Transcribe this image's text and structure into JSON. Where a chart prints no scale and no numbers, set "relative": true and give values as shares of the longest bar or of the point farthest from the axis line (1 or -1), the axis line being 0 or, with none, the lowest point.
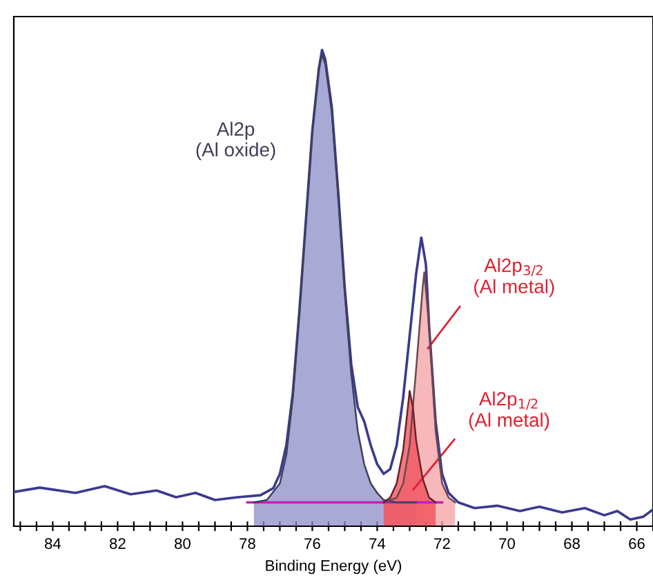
{
  "chart_data": {
    "type": "area",
    "xlabel": "Binding Energy (eV)",
    "relative": true,
    "legend": false,
    "grid": false,
    "xlim": [
      85.2,
      65.5
    ],
    "xticks": [
      {
        "value": 85,
        "label": null
      },
      {
        "value": 84.5,
        "label": null
      },
      84,
      {
        "value": 83.5,
        "label": null
      },
      {
        "value": 83,
        "label": null
      },
      {
        "value": 82.5,
        "label": null
      },
      82,
      {
        "value": 81.5,
        "label": null
      },
      {
        "value": 81,
        "label": null
      },
      {
        "value": 80.5,
        "label": null
      },
      80,
      {
        "value": 79.5,
        "label": null
      },
      {
        "value": 79,
        "label": null
      },
      {
        "value": 78.5,
        "label": null
      },
      78,
      {
        "value": 77.5,
        "label": null
      },
      {
        "value": 77,
        "label": null
      },
      {
        "value": 76.5,
        "label": null
      },
      76,
      {
        "value": 75.5,
        "label": null
      },
      {
        "value": 75,
        "label": null
      },
      {
        "value": 74.5,
        "label": null
      },
      74,
      {
        "value": 73.5,
        "label": null
      },
      {
        "value": 73,
        "label": null
      },
      {
        "value": 72.5,
        "label": null
      },
      72,
      {
        "value": 71.5,
        "label": null
      },
      {
        "value": 71,
        "label": null
      },
      {
        "value": 70.5,
        "label": null
      },
      70,
      {
        "value": 69.5,
        "label": null
      },
      {
        "value": 69,
        "label": null
      },
      {
        "value": 68.5,
        "label": null
      },
      68,
      {
        "value": 67.5,
        "label": null
      },
      {
        "value": 67,
        "label": null
      },
      {
        "value": 66.5,
        "label": null
      },
      66,
      {
        "value": 65.5,
        "label": null
      }
    ],
    "series": [
      {
        "name": "Al2p\n(Al oxide)",
        "color": "#8c8cc8",
        "x": [
          77.8,
          77.4,
          77.0,
          76.8,
          76.6,
          76.4,
          76.2,
          76.0,
          75.8,
          75.7,
          75.6,
          75.4,
          75.2,
          75.0,
          74.8,
          74.6,
          74.4,
          74.2,
          74.0,
          73.8,
          73.4,
          72.8
        ],
        "values": [
          0.05,
          0.055,
          0.09,
          0.15,
          0.27,
          0.45,
          0.64,
          0.83,
          0.96,
          0.99,
          0.97,
          0.87,
          0.69,
          0.49,
          0.32,
          0.2,
          0.13,
          0.09,
          0.07,
          0.055,
          0.05,
          0.05
        ]
      },
      {
        "name": "Al2p$_{3/2}$\n(Al metal)",
        "color": "#f4a0a6",
        "x": [
          73.8,
          73.4,
          73.2,
          73.0,
          72.8,
          72.6,
          72.55,
          72.4,
          72.2,
          72.0,
          71.8,
          71.6
        ],
        "values": [
          0.05,
          0.06,
          0.09,
          0.17,
          0.33,
          0.5,
          0.533,
          0.42,
          0.2,
          0.09,
          0.06,
          0.05
        ]
      },
      {
        "name": "Al2p$_{1/2}$\n(Al metal)",
        "color": "#f04a55",
        "x": [
          73.8,
          73.6,
          73.4,
          73.2,
          73.0,
          72.9,
          72.8,
          72.6,
          72.4,
          72.2
        ],
        "values": [
          0.05,
          0.06,
          0.09,
          0.16,
          0.284,
          0.25,
          0.18,
          0.1,
          0.06,
          0.05
        ]
      },
      {
        "type": "line",
        "color": "#c020c0",
        "x": [
          78.0,
          72.0
        ],
        "values": [
          0.05,
          0.05
        ]
      },
      {
        "type": "line",
        "color": "#3a3a90",
        "x": [
          85.2,
          84.4,
          83.3,
          82.4,
          81.6,
          80.8,
          80.2,
          79.6,
          79.0,
          78.3,
          77.6,
          77.2,
          77.0,
          76.8,
          76.6,
          76.4,
          76.2,
          76.0,
          75.8,
          75.7,
          75.6,
          75.4,
          75.2,
          75.0,
          74.8,
          74.6,
          74.4,
          74.2,
          74.0,
          73.8,
          73.6,
          73.4,
          73.2,
          73.0,
          72.8,
          72.64,
          72.5,
          72.4,
          72.2,
          72.0,
          71.8,
          71.5,
          71.0,
          70.3,
          69.6,
          69.0,
          68.3,
          67.6,
          67.0,
          66.6,
          66.2,
          65.8,
          65.5
        ],
        "values": [
          0.072,
          0.081,
          0.07,
          0.084,
          0.067,
          0.075,
          0.061,
          0.07,
          0.055,
          0.061,
          0.065,
          0.08,
          0.11,
          0.17,
          0.28,
          0.45,
          0.64,
          0.83,
          0.96,
          1.0,
          0.98,
          0.88,
          0.7,
          0.5,
          0.34,
          0.25,
          0.22,
          0.17,
          0.13,
          0.11,
          0.12,
          0.17,
          0.27,
          0.4,
          0.53,
          0.606,
          0.55,
          0.42,
          0.22,
          0.11,
          0.07,
          0.05,
          0.038,
          0.043,
          0.032,
          0.041,
          0.029,
          0.038,
          0.023,
          0.032,
          0.014,
          0.02,
          0.035
        ]
      }
    ]
  }
}
